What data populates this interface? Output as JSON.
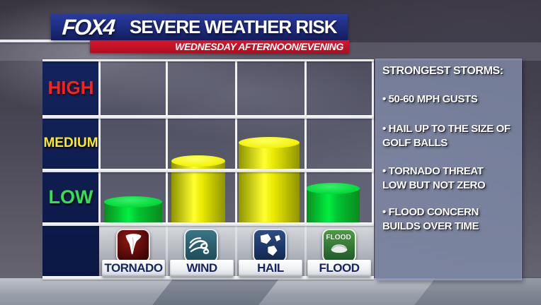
{
  "header": {
    "logo": "FOX4",
    "title": "SEVERE WEATHER RISK",
    "subtitle": "WEDNESDAY AFTERNOON/EVENING"
  },
  "risk_axis": {
    "high": "HIGH",
    "medium": "MEDIUM",
    "low": "LOW",
    "colors": {
      "high": "#ff1f1f",
      "medium": "#ffe81e",
      "low": "#35e04e"
    }
  },
  "categories": [
    {
      "label": "TORNADO",
      "icon": "tornado-icon"
    },
    {
      "label": "WIND",
      "icon": "wind-icon"
    },
    {
      "label": "HAIL",
      "icon": "hail-icon"
    },
    {
      "label": "FLOOD",
      "icon": "flood-icon"
    }
  ],
  "sidebar": {
    "heading": "STRONGEST STORMS:",
    "bullets": [
      {
        "line1": "• 50-60 MPH GUSTS",
        "line2": ""
      },
      {
        "line1": "• HAIL UP TO THE SIZE OF",
        "line2": "GOLF BALLS"
      },
      {
        "line1": "• TORNADO THREAT",
        "line2": "LOW BUT NOT ZERO"
      },
      {
        "line1": "• FLOOD CONCERN",
        "line2": "BUILDS OVER TIME"
      }
    ]
  },
  "chart_data": {
    "type": "bar",
    "title": "SEVERE WEATHER RISK",
    "subtitle": "WEDNESDAY AFTERNOON/EVENING",
    "categories": [
      "TORNADO",
      "WIND",
      "HAIL",
      "FLOOD"
    ],
    "values": [
      0.42,
      1.18,
      1.52,
      0.67
    ],
    "value_scale": "risk bands: 0-1 = LOW, 1-2 = MEDIUM, 2-3 = HIGH",
    "ylim": [
      0,
      3
    ],
    "ytick_labels": [
      "LOW",
      "MEDIUM",
      "HIGH"
    ],
    "grid": true,
    "legend": false,
    "bar_colors": [
      {
        "name": "green",
        "edge": "#0a8a1e",
        "mid": "#00ef40",
        "mid2": "#00c532",
        "top": "#00d838",
        "top_hi": "#39f06a"
      },
      {
        "name": "yellow",
        "edge": "#8e9400",
        "mid": "#ffff2e",
        "mid2": "#e8e800",
        "top": "#f2f204",
        "top_hi": "#ffff66"
      },
      {
        "name": "yellow",
        "edge": "#8e9400",
        "mid": "#ffff2e",
        "mid2": "#e8e800",
        "top": "#f2f204",
        "top_hi": "#ffff66"
      },
      {
        "name": "green",
        "edge": "#0a8a1e",
        "mid": "#00ef40",
        "mid2": "#00c532",
        "top": "#00d838",
        "top_hi": "#39f06a"
      }
    ],
    "annotations": [
      "STRONGEST STORMS:",
      "50-60 MPH GUSTS",
      "HAIL UP TO THE SIZE OF GOLF BALLS",
      "TORNADO THREAT LOW BUT NOT ZERO",
      "FLOOD CONCERN BUILDS OVER TIME"
    ]
  }
}
